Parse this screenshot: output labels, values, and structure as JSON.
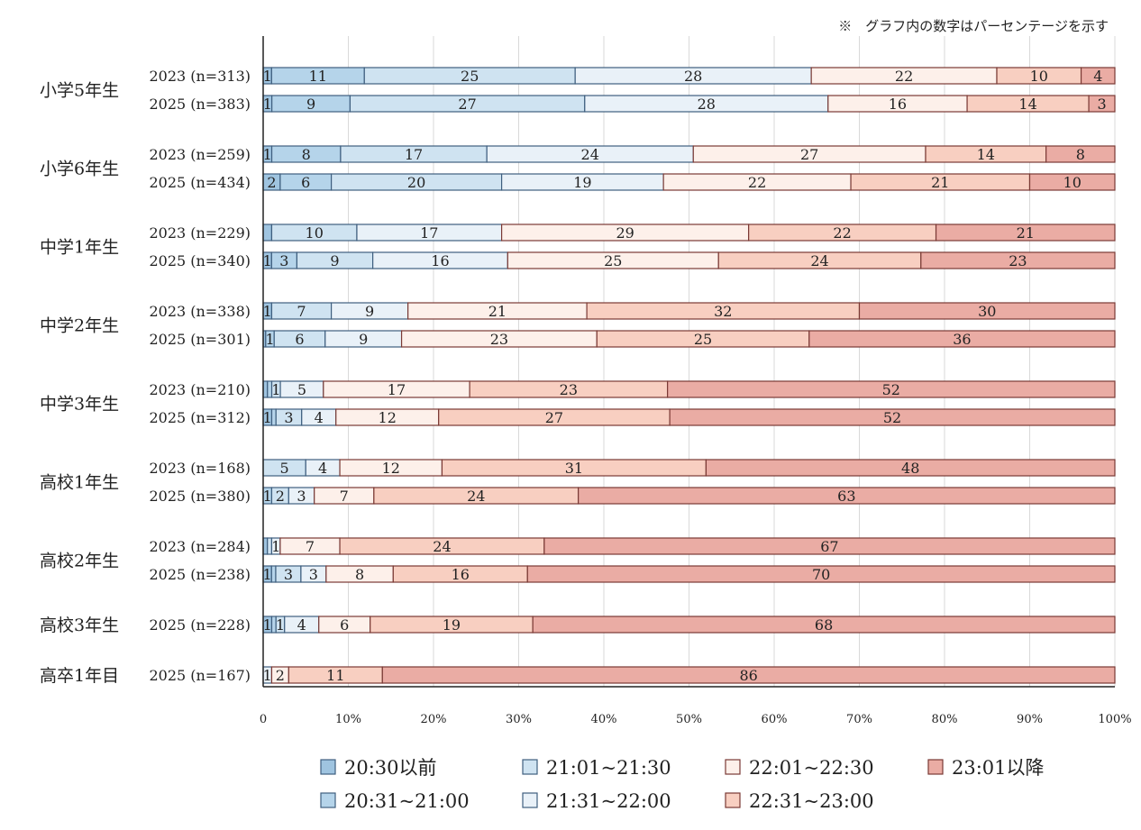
{
  "note": "※　グラフ内の数字はパーセンテージを示す",
  "chart_data": {
    "type": "bar",
    "orientation": "horizontal",
    "stacked": true,
    "xlim": [
      0,
      100
    ],
    "ticks": [
      "0",
      "10%",
      "20%",
      "30%",
      "40%",
      "50%",
      "60%",
      "70%",
      "80%",
      "90%",
      "100%"
    ],
    "grid": true,
    "legend_position": "bottom",
    "categories_order": [
      "20:30以前",
      "20:31~21:00",
      "21:01~21:30",
      "21:31~22:00",
      "22:01~22:30",
      "22:31~23:00",
      "23:01以降"
    ],
    "legend": [
      {
        "name": "20:30以前",
        "color": "#9fc4e0"
      },
      {
        "name": "21:01~21:30",
        "color": "#cfe3f1"
      },
      {
        "name": "22:01~22:30",
        "color": "#fdf0ea"
      },
      {
        "name": "23:01以降",
        "color": "#eaaca4"
      },
      {
        "name": "20:31~21:00",
        "color": "#b5d4ea"
      },
      {
        "name": "21:31~22:00",
        "color": "#e9f1f8"
      },
      {
        "name": "22:31~23:00",
        "color": "#f8cfc1"
      }
    ],
    "series_colors": [
      "#9fc4e0",
      "#b5d4ea",
      "#cfe3f1",
      "#e9f1f8",
      "#fdf0ea",
      "#f8cfc1",
      "#eaaca4"
    ],
    "border_colors": [
      "#3f5f7f",
      "#3f5f7f",
      "#3f5f7f",
      "#3f5f7f",
      "#7a3a35",
      "#7a3a35",
      "#7a3a35"
    ],
    "groups": [
      {
        "grade": "小学5年生",
        "rows": [
          {
            "label": "2023 (n=313)",
            "values": [
              1,
              11,
              25,
              28,
              22,
              10,
              4
            ]
          },
          {
            "label": "2025 (n=383)",
            "values": [
              1,
              9,
              27,
              28,
              16,
              14,
              3
            ]
          }
        ]
      },
      {
        "grade": "小学6年生",
        "rows": [
          {
            "label": "2023 (n=259)",
            "values": [
              1,
              8,
              17,
              24,
              27,
              14,
              8
            ]
          },
          {
            "label": "2025 (n=434)",
            "values": [
              2,
              6,
              20,
              19,
              22,
              21,
              10
            ]
          }
        ]
      },
      {
        "grade": "中学1年生",
        "rows": [
          {
            "label": "2023 (n=229)",
            "values": [
              1,
              10,
              17,
              29,
              22,
              21
            ],
            "series_idx": [
              0,
              2,
              3,
              4,
              5,
              6
            ],
            "shown": [
              false,
              true,
              true,
              true,
              true,
              true
            ]
          },
          {
            "label": "2025 (n=340)",
            "values": [
              1,
              3,
              9,
              16,
              25,
              24,
              23
            ]
          }
        ]
      },
      {
        "grade": "中学2年生",
        "rows": [
          {
            "label": "2023 (n=338)",
            "values": [
              1,
              7,
              9,
              21,
              32,
              30
            ],
            "series_idx": [
              0,
              2,
              3,
              4,
              5,
              6
            ]
          },
          {
            "label": "2025 (n=301)",
            "values": [
              0.3,
              1,
              6,
              9,
              23,
              25,
              36
            ],
            "shown": [
              false,
              true,
              true,
              true,
              true,
              true,
              true
            ]
          }
        ]
      },
      {
        "grade": "中学3年生",
        "rows": [
          {
            "label": "2023 (n=210)",
            "values": [
              0.5,
              0.5,
              1,
              5,
              17,
              23,
              52
            ],
            "shown": [
              false,
              false,
              true,
              true,
              true,
              true,
              true
            ]
          },
          {
            "label": "2025 (n=312)",
            "values": [
              1,
              0.5,
              3,
              4,
              12,
              27,
              52
            ],
            "shown": [
              true,
              false,
              true,
              true,
              true,
              true,
              true
            ]
          }
        ]
      },
      {
        "grade": "高校1年生",
        "rows": [
          {
            "label": "2023 (n=168)",
            "values": [
              5,
              4,
              12,
              31,
              48
            ],
            "series_idx": [
              2,
              3,
              4,
              5,
              6
            ]
          },
          {
            "label": "2025 (n=380)",
            "values": [
              1,
              2,
              3,
              7,
              24,
              63
            ],
            "series_idx": [
              1,
              2,
              3,
              4,
              5,
              6
            ]
          }
        ]
      },
      {
        "grade": "高校2年生",
        "rows": [
          {
            "label": "2023 (n=284)",
            "values": [
              0.5,
              0.5,
              1,
              7,
              24,
              67
            ],
            "series_idx": [
              0,
              2,
              3,
              4,
              5,
              6
            ],
            "shown": [
              false,
              false,
              true,
              true,
              true,
              true
            ]
          },
          {
            "label": "2025 (n=238)",
            "values": [
              1,
              0.5,
              3,
              3,
              8,
              16,
              70
            ],
            "shown": [
              true,
              false,
              true,
              true,
              true,
              true,
              true
            ]
          }
        ]
      },
      {
        "grade": "高校3年生",
        "rows": [
          {
            "label": "2025 (n=228)",
            "values": [
              1,
              0.5,
              1,
              4,
              6,
              19,
              68
            ],
            "shown": [
              true,
              false,
              true,
              true,
              true,
              true,
              true
            ]
          }
        ]
      },
      {
        "grade": "高卒1年目",
        "rows": [
          {
            "label": "2025 (n=167)",
            "values": [
              1,
              2,
              11,
              86
            ],
            "series_idx": [
              3,
              4,
              5,
              6
            ]
          }
        ]
      }
    ]
  }
}
